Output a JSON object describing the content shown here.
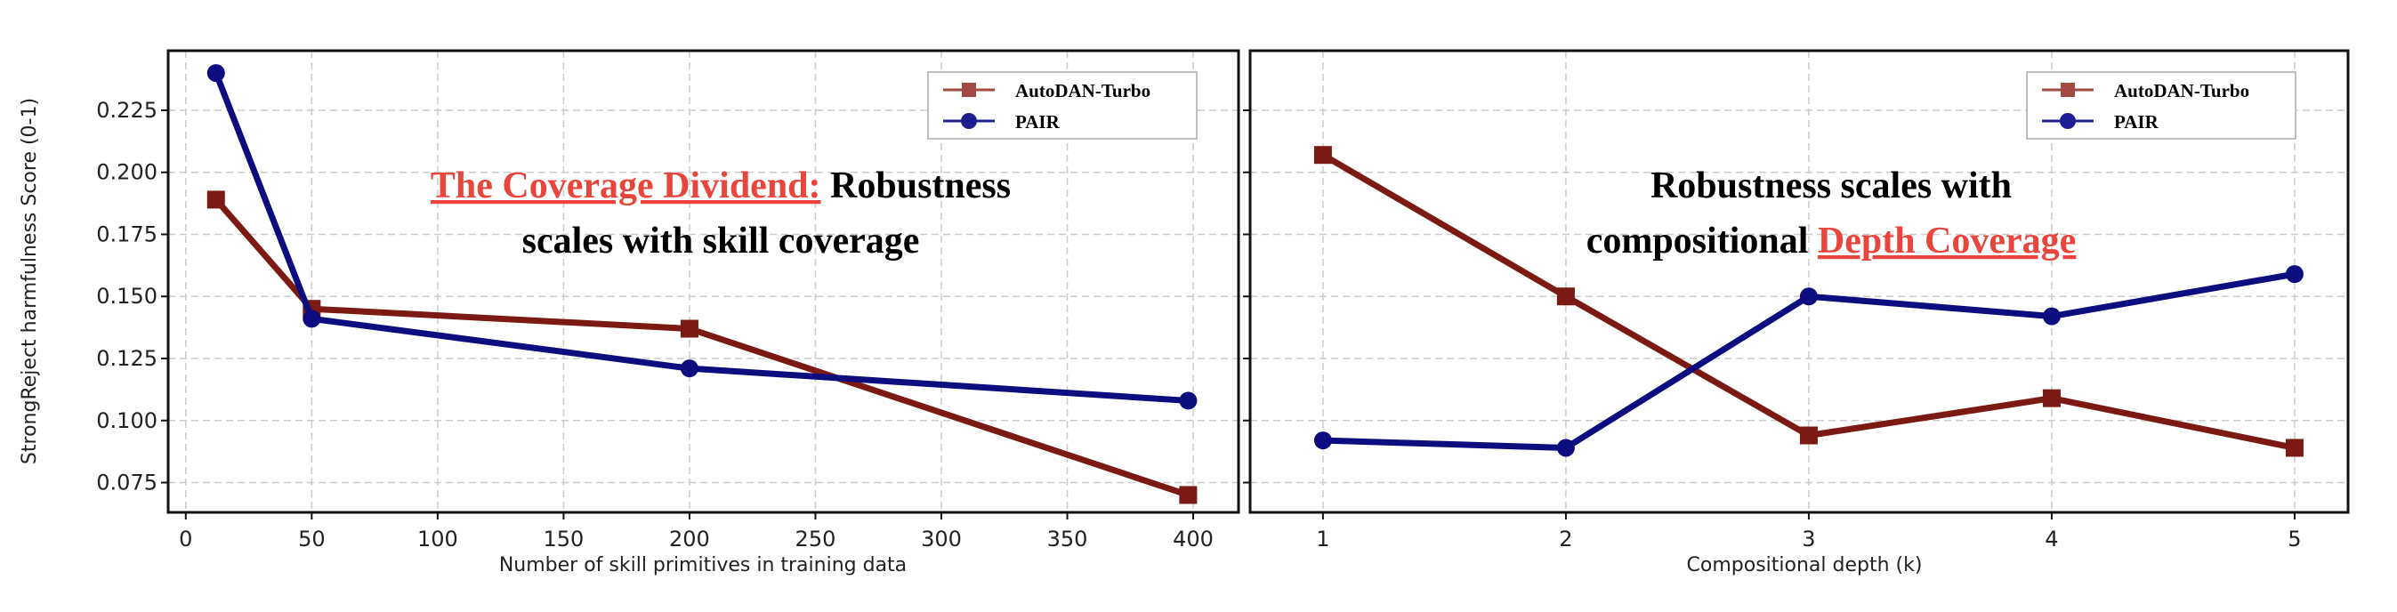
{
  "chart_data": [
    {
      "type": "line",
      "title_parts": {
        "line1_highlight": "The Coverage Dividend:",
        "line1_rest": " Robustness",
        "line2": "scales with skill coverage"
      },
      "xlabel": "Number of skill primitives in training data",
      "ylabel": "StrongReject harmfulness Score (0-1)",
      "xlim": [
        -7,
        418
      ],
      "ylim": [
        0.063,
        0.249
      ],
      "xticks": [
        0,
        50,
        100,
        150,
        200,
        250,
        300,
        350,
        400
      ],
      "yticks": [
        0.075,
        0.1,
        0.125,
        0.15,
        0.175,
        0.2,
        0.225
      ],
      "ytick_labels": [
        "0.075",
        "0.100",
        "0.125",
        "0.150",
        "0.175",
        "0.200",
        "0.225"
      ],
      "grid": true,
      "legend_position": "top-right",
      "series": [
        {
          "name": "AutoDAN-Turbo",
          "color": "#7B1A12",
          "marker": "square",
          "x": [
            12,
            50,
            200,
            398
          ],
          "y": [
            0.189,
            0.145,
            0.137,
            0.07
          ]
        },
        {
          "name": "PAIR",
          "color": "#0D0D80",
          "marker": "circle",
          "x": [
            12,
            50,
            200,
            398
          ],
          "y": [
            0.24,
            0.141,
            0.121,
            0.108
          ]
        }
      ]
    },
    {
      "type": "line",
      "title_parts": {
        "line1": "Robustness scales with",
        "line2_rest": "compositional ",
        "line2_highlight": "Depth Coverage"
      },
      "xlabel": "Compositional depth (k)",
      "xlim": [
        0.7,
        5.22
      ],
      "ylim": [
        0.063,
        0.249
      ],
      "xticks": [
        1,
        2,
        3,
        4,
        5
      ],
      "yticks": [
        0.075,
        0.1,
        0.125,
        0.15,
        0.175,
        0.2,
        0.225
      ],
      "grid": true,
      "legend_position": "top-right",
      "series": [
        {
          "name": "AutoDAN-Turbo",
          "color": "#7B1A12",
          "marker": "square",
          "x": [
            1,
            2,
            3,
            4,
            5
          ],
          "y": [
            0.207,
            0.15,
            0.094,
            0.109,
            0.089
          ]
        },
        {
          "name": "PAIR",
          "color": "#0D0D80",
          "marker": "circle",
          "x": [
            1,
            2,
            3,
            4,
            5
          ],
          "y": [
            0.092,
            0.089,
            0.15,
            0.142,
            0.159
          ]
        }
      ]
    }
  ],
  "colors": {
    "highlight": "#E8453C",
    "autodan": "#7B1A12",
    "pair": "#0D0D80"
  }
}
